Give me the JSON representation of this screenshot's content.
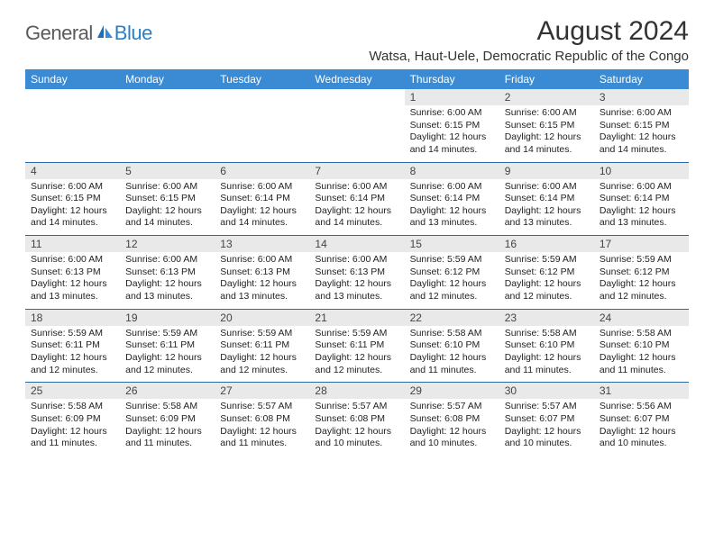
{
  "logo": {
    "general": "General",
    "blue": "Blue"
  },
  "title": "August 2024",
  "location": "Watsa, Haut-Uele, Democratic Republic of the Congo",
  "colors": {
    "header_bg": "#3b8bd4",
    "header_text": "#ffffff",
    "date_bg": "#e9e9e9",
    "week_divider": "#2a6aa8",
    "logo_general": "#5a5a5a",
    "logo_blue": "#2a7fc9"
  },
  "day_headers": [
    "Sunday",
    "Monday",
    "Tuesday",
    "Wednesday",
    "Thursday",
    "Friday",
    "Saturday"
  ],
  "weeks": [
    [
      null,
      null,
      null,
      null,
      {
        "d": "1",
        "sr": "6:00 AM",
        "ss": "6:15 PM",
        "dl": "12 hours and 14 minutes."
      },
      {
        "d": "2",
        "sr": "6:00 AM",
        "ss": "6:15 PM",
        "dl": "12 hours and 14 minutes."
      },
      {
        "d": "3",
        "sr": "6:00 AM",
        "ss": "6:15 PM",
        "dl": "12 hours and 14 minutes."
      }
    ],
    [
      {
        "d": "4",
        "sr": "6:00 AM",
        "ss": "6:15 PM",
        "dl": "12 hours and 14 minutes."
      },
      {
        "d": "5",
        "sr": "6:00 AM",
        "ss": "6:15 PM",
        "dl": "12 hours and 14 minutes."
      },
      {
        "d": "6",
        "sr": "6:00 AM",
        "ss": "6:14 PM",
        "dl": "12 hours and 14 minutes."
      },
      {
        "d": "7",
        "sr": "6:00 AM",
        "ss": "6:14 PM",
        "dl": "12 hours and 14 minutes."
      },
      {
        "d": "8",
        "sr": "6:00 AM",
        "ss": "6:14 PM",
        "dl": "12 hours and 13 minutes."
      },
      {
        "d": "9",
        "sr": "6:00 AM",
        "ss": "6:14 PM",
        "dl": "12 hours and 13 minutes."
      },
      {
        "d": "10",
        "sr": "6:00 AM",
        "ss": "6:14 PM",
        "dl": "12 hours and 13 minutes."
      }
    ],
    [
      {
        "d": "11",
        "sr": "6:00 AM",
        "ss": "6:13 PM",
        "dl": "12 hours and 13 minutes."
      },
      {
        "d": "12",
        "sr": "6:00 AM",
        "ss": "6:13 PM",
        "dl": "12 hours and 13 minutes."
      },
      {
        "d": "13",
        "sr": "6:00 AM",
        "ss": "6:13 PM",
        "dl": "12 hours and 13 minutes."
      },
      {
        "d": "14",
        "sr": "6:00 AM",
        "ss": "6:13 PM",
        "dl": "12 hours and 13 minutes."
      },
      {
        "d": "15",
        "sr": "5:59 AM",
        "ss": "6:12 PM",
        "dl": "12 hours and 12 minutes."
      },
      {
        "d": "16",
        "sr": "5:59 AM",
        "ss": "6:12 PM",
        "dl": "12 hours and 12 minutes."
      },
      {
        "d": "17",
        "sr": "5:59 AM",
        "ss": "6:12 PM",
        "dl": "12 hours and 12 minutes."
      }
    ],
    [
      {
        "d": "18",
        "sr": "5:59 AM",
        "ss": "6:11 PM",
        "dl": "12 hours and 12 minutes."
      },
      {
        "d": "19",
        "sr": "5:59 AM",
        "ss": "6:11 PM",
        "dl": "12 hours and 12 minutes."
      },
      {
        "d": "20",
        "sr": "5:59 AM",
        "ss": "6:11 PM",
        "dl": "12 hours and 12 minutes."
      },
      {
        "d": "21",
        "sr": "5:59 AM",
        "ss": "6:11 PM",
        "dl": "12 hours and 12 minutes."
      },
      {
        "d": "22",
        "sr": "5:58 AM",
        "ss": "6:10 PM",
        "dl": "12 hours and 11 minutes."
      },
      {
        "d": "23",
        "sr": "5:58 AM",
        "ss": "6:10 PM",
        "dl": "12 hours and 11 minutes."
      },
      {
        "d": "24",
        "sr": "5:58 AM",
        "ss": "6:10 PM",
        "dl": "12 hours and 11 minutes."
      }
    ],
    [
      {
        "d": "25",
        "sr": "5:58 AM",
        "ss": "6:09 PM",
        "dl": "12 hours and 11 minutes."
      },
      {
        "d": "26",
        "sr": "5:58 AM",
        "ss": "6:09 PM",
        "dl": "12 hours and 11 minutes."
      },
      {
        "d": "27",
        "sr": "5:57 AM",
        "ss": "6:08 PM",
        "dl": "12 hours and 11 minutes."
      },
      {
        "d": "28",
        "sr": "5:57 AM",
        "ss": "6:08 PM",
        "dl": "12 hours and 10 minutes."
      },
      {
        "d": "29",
        "sr": "5:57 AM",
        "ss": "6:08 PM",
        "dl": "12 hours and 10 minutes."
      },
      {
        "d": "30",
        "sr": "5:57 AM",
        "ss": "6:07 PM",
        "dl": "12 hours and 10 minutes."
      },
      {
        "d": "31",
        "sr": "5:56 AM",
        "ss": "6:07 PM",
        "dl": "12 hours and 10 minutes."
      }
    ]
  ],
  "labels": {
    "sunrise": "Sunrise:",
    "sunset": "Sunset:",
    "daylight": "Daylight:"
  }
}
